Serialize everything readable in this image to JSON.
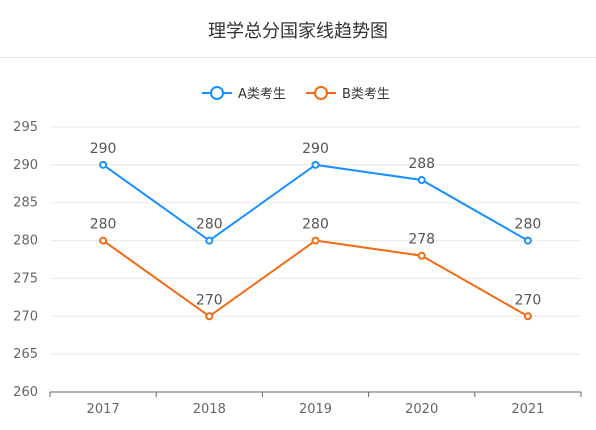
{
  "chart_data": {
    "type": "line",
    "title": "理学总分国家线趋势图",
    "categories": [
      "2017",
      "2018",
      "2019",
      "2020",
      "2021"
    ],
    "series": [
      {
        "name": "A类考生",
        "values": [
          290,
          280,
          290,
          288,
          280
        ],
        "color": "#1890ff"
      },
      {
        "name": "B类考生",
        "values": [
          280,
          270,
          280,
          278,
          270
        ],
        "color": "#f26b14"
      }
    ],
    "ylim": [
      260,
      295
    ],
    "yticks": [
      260,
      265,
      270,
      275,
      280,
      285,
      290,
      295
    ],
    "grid": true,
    "legend_position": "top-center",
    "xlabel": "",
    "ylabel": ""
  }
}
